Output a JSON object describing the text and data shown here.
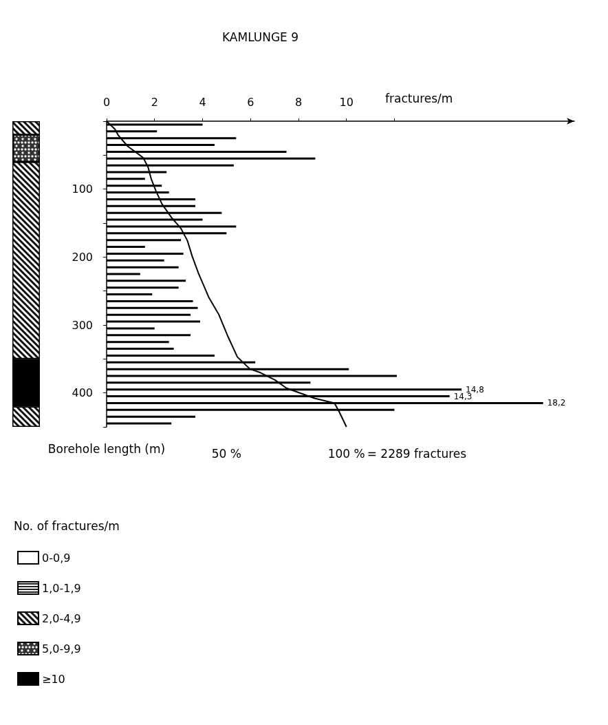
{
  "chart_data": [
    {
      "type": "bar",
      "orientation": "horizontal",
      "title": "KAMLUNGE 9",
      "xlabel": "fractures/m",
      "ylabel": "Borehole length (m)",
      "xlim": [
        0,
        19.5
      ],
      "xticks": [
        0,
        2,
        4,
        6,
        8,
        10,
        {
          "value": 12,
          "label": null
        }
      ],
      "ylim": [
        450,
        0
      ],
      "yticks": [
        {
          "value": 0,
          "label": null
        },
        {
          "value": 50,
          "label": null
        },
        100,
        {
          "value": 150,
          "label": null
        },
        200,
        {
          "value": 250,
          "label": null
        },
        300,
        {
          "value": 350,
          "label": null
        },
        400,
        {
          "value": 450,
          "label": null
        }
      ],
      "x2lim": [
        0,
        195
      ],
      "x2ticks": [
        {
          "value": 50,
          "label": "50 %"
        },
        {
          "value": 100,
          "label": "100 %"
        }
      ],
      "x2label": "= 2289 fractures",
      "series": [
        {
          "color": "#000000",
          "x": [
            5,
            15,
            25,
            35,
            45,
            55,
            65,
            75,
            85,
            95,
            105,
            115,
            125,
            135,
            145,
            155,
            165,
            175,
            185,
            195,
            205,
            215,
            225,
            235,
            245,
            255,
            265,
            275,
            285,
            295,
            305,
            315,
            325,
            335,
            345,
            355,
            365,
            375,
            385,
            395,
            405,
            415,
            425,
            435,
            445
          ],
          "values": [
            4.0,
            2.1,
            5.4,
            4.5,
            7.5,
            8.7,
            5.3,
            2.5,
            1.6,
            2.3,
            2.6,
            3.7,
            3.7,
            4.8,
            4.0,
            5.4,
            5.0,
            3.1,
            1.6,
            3.2,
            2.4,
            3.0,
            1.4,
            3.3,
            3.0,
            1.9,
            3.6,
            3.8,
            3.5,
            3.9,
            2.0,
            3.5,
            2.6,
            2.8,
            4.5,
            6.2,
            10.1,
            12.1,
            8.5,
            14.8,
            14.3,
            18.2,
            12.0,
            3.7,
            2.7
          ],
          "value_labels": [
            null,
            null,
            null,
            null,
            null,
            null,
            null,
            null,
            null,
            null,
            null,
            null,
            null,
            null,
            null,
            null,
            null,
            null,
            null,
            null,
            null,
            null,
            null,
            null,
            null,
            null,
            null,
            null,
            null,
            null,
            null,
            null,
            null,
            null,
            null,
            null,
            null,
            null,
            null,
            "14,8",
            "14,3",
            "18,2",
            null,
            null,
            null
          ]
        },
        {
          "type": "line",
          "axis": "x2",
          "color": "#000000",
          "x": [
            0,
            12,
            21,
            37,
            47,
            54,
            68,
            85,
            103,
            122,
            142,
            158,
            176,
            199,
            223,
            260,
            284,
            317,
            347,
            365,
            370,
            381,
            393,
            408,
            415,
            428,
            450
          ],
          "values": [
            0,
            3.5,
            4.9,
            8.8,
            12.7,
            15.3,
            17.3,
            18.6,
            20.6,
            23.1,
            27.1,
            31,
            33.7,
            35.7,
            38.2,
            42.7,
            46.7,
            50.6,
            54.5,
            59.8,
            64,
            70.2,
            75,
            86.7,
            95,
            97,
            100
          ]
        }
      ]
    },
    {
      "type": "bar",
      "stacked": true,
      "categories": [
        null
      ],
      "ylim": [
        450,
        0
      ],
      "legend": "bottom",
      "legend_title": "No. of fractures/m",
      "series": [
        {
          "name": "0-0,9",
          "color": "#ffffff",
          "values": [
            null
          ]
        },
        {
          "name": "1,0-1,9",
          "color": "#222222",
          "values": [
            null
          ]
        },
        {
          "name": "2,0-4,9",
          "color": "#111111",
          "values": [
            20
          ]
        },
        {
          "name": "5,0-9,9",
          "color": "#333333",
          "values": [
            40
          ]
        },
        {
          "color": "#111111",
          "values": [
            290
          ]
        },
        {
          "name": "≥10",
          "color": "#000000",
          "values": [
            70
          ]
        },
        {
          "color": "#111111",
          "values": [
            30
          ]
        }
      ]
    }
  ]
}
